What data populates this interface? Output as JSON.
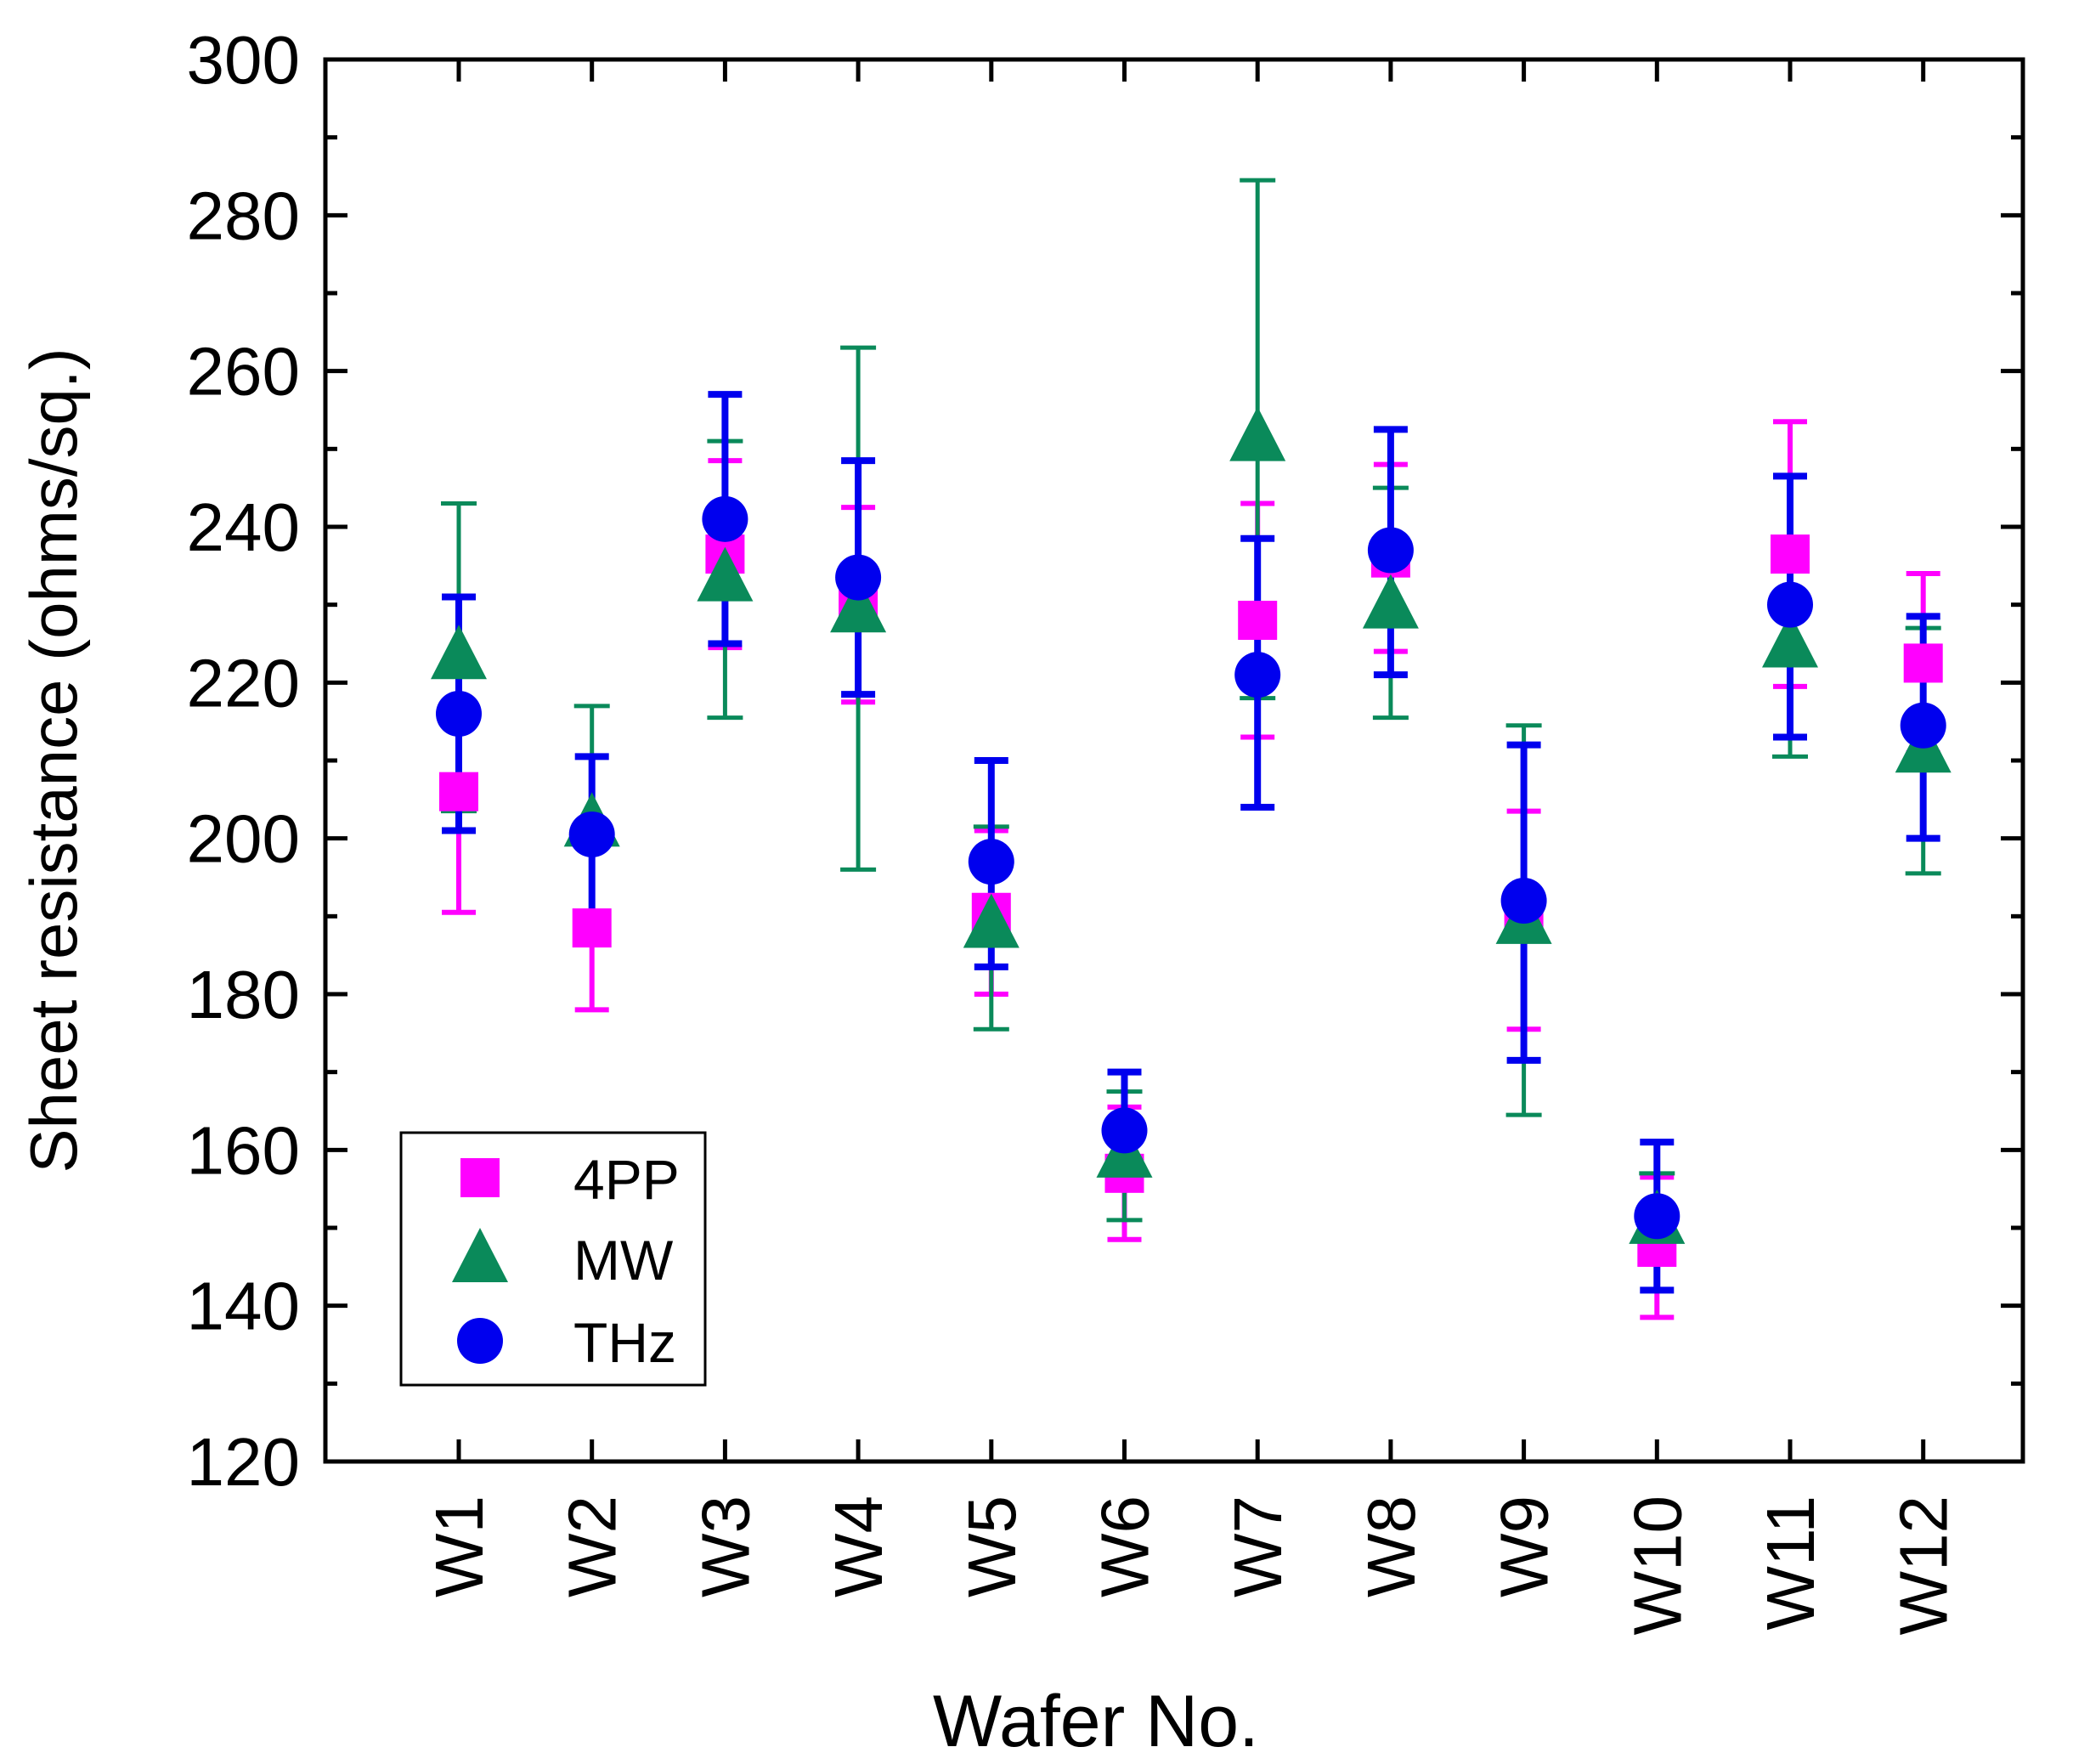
{
  "chart_data": {
    "type": "scatter",
    "title": "",
    "xlabel": "Wafer No.",
    "ylabel": "Sheet resistance (ohms/sq.)",
    "categories": [
      "W1",
      "W2",
      "W3",
      "W4",
      "W5",
      "W6",
      "W7",
      "W8",
      "W9",
      "W10",
      "W11",
      "W12"
    ],
    "ylim": [
      120,
      300
    ],
    "yticks": [
      120,
      140,
      160,
      180,
      200,
      220,
      240,
      260,
      280,
      300
    ],
    "ytick_labels": [
      "120",
      "140",
      "160",
      "180",
      "200",
      "220",
      "240",
      "260",
      "280",
      "300"
    ],
    "legend_position": "bottom-left",
    "series": [
      {
        "name": "4PP",
        "marker": "square",
        "color": "#ff00ff",
        "values": [
          206,
          188.5,
          236.5,
          230,
          190.5,
          157,
          228,
          236,
          189.5,
          147.5,
          236.5,
          222.5
        ],
        "lower": [
          190.5,
          178,
          224.5,
          217.5,
          180,
          148.5,
          213,
          224,
          175.5,
          138.5,
          219.5,
          211
        ],
        "upper": [
          221.5,
          199,
          248.5,
          242.5,
          201,
          165.5,
          243,
          248,
          203.5,
          156.5,
          253.5,
          234
        ]
      },
      {
        "name": "MW",
        "marker": "triangle",
        "color": "#0a8a5a",
        "values": [
          223.5,
          202,
          233.5,
          229.5,
          189,
          159.5,
          251.5,
          230,
          189.5,
          151,
          225,
          211.5
        ],
        "lower": [
          203.5,
          187,
          215.5,
          196,
          175.5,
          151,
          218,
          215.5,
          164.5,
          145.5,
          210.5,
          195.5
        ],
        "upper": [
          243,
          217,
          251,
          263,
          201.5,
          167.5,
          284.5,
          245,
          214.5,
          157,
          238.5,
          227
        ]
      },
      {
        "name": "THz",
        "marker": "circle",
        "color": "#0000ee",
        "values": [
          216,
          200.5,
          241,
          233.5,
          197,
          162.5,
          221,
          237,
          192,
          151.5,
          230,
          214.5
        ],
        "lower": [
          201,
          190.5,
          225,
          218.5,
          183.5,
          155,
          204,
          221,
          171.5,
          142,
          213,
          200
        ],
        "upper": [
          231,
          210.5,
          257,
          248.5,
          210,
          170,
          238.5,
          252.5,
          212,
          161,
          246.5,
          228.5
        ]
      }
    ]
  }
}
